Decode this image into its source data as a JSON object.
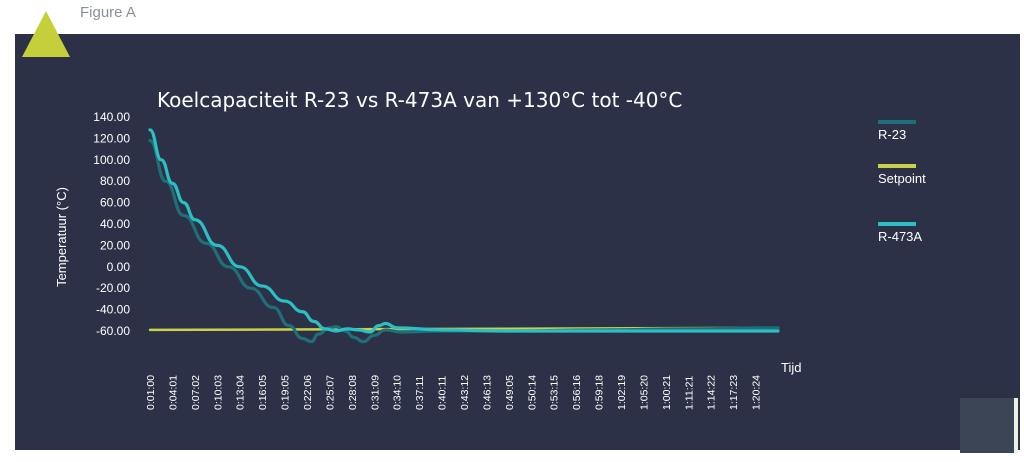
{
  "figure_label": "Figure A",
  "chart_data": {
    "type": "line",
    "title": "Koelcapaciteit R-23 vs R-473A van +130°C tot -40°C",
    "xlabel": "Tijd",
    "ylabel": "Temperatuur (°C)",
    "yticks": [
      "140.00",
      "120.00",
      "100.00",
      "80.00",
      "60.00",
      "40.00",
      "20.00",
      "0.00",
      "-20.00",
      "-40.00",
      "-60.00"
    ],
    "ylim": [
      -60,
      140
    ],
    "x_tick_labels": [
      "0:01:00",
      "0:04:01",
      "0:07:02",
      "0:10:03",
      "0:13:04",
      "0:16:05",
      "0:19:05",
      "0:22:06",
      "0:25:07",
      "0:28:08",
      "0:31:09",
      "0:34:10",
      "0:37:11",
      "0:40:11",
      "0:43:12",
      "0:46:13",
      "0:49:05",
      "0:50:14",
      "0:53:15",
      "0:56:16",
      "0:59:18",
      "1:02:19",
      "1:05:20",
      "1:00:21",
      "1:11:21",
      "1:14:22",
      "1:17:23",
      "1:20:24"
    ],
    "legend_position": "right",
    "series": [
      {
        "name": "R-23",
        "color": "#1f6e78",
        "x_index": [
          0,
          0.7,
          1.5,
          2.5,
          3.5,
          4.5,
          5.5,
          6.2,
          6.8,
          7.2,
          7.5,
          8.0,
          8.3,
          8.7,
          9.1,
          9.5,
          10.0,
          10.5,
          11.2,
          13,
          16,
          20,
          24,
          28
        ],
        "values": [
          118,
          80,
          48,
          22,
          0,
          -20,
          -38,
          -55,
          -67,
          -70,
          -63,
          -57,
          -56,
          -60,
          -66,
          -70,
          -64,
          -59,
          -61,
          -60,
          -60,
          -59,
          -58,
          -57
        ]
      },
      {
        "name": "Setpoint",
        "color": "#c8d14a",
        "x_index": [
          0,
          28
        ],
        "values": [
          -59,
          -57
        ]
      },
      {
        "name": "R-473A",
        "color": "#2bbfc3",
        "x_index": [
          0,
          0.5,
          1.0,
          1.5,
          2.0,
          3.0,
          4.0,
          5.0,
          6.0,
          6.8,
          7.3,
          7.8,
          8.3,
          8.8,
          9.3,
          9.8,
          10.2,
          10.5,
          11,
          13,
          16,
          20,
          24,
          28
        ],
        "values": [
          128,
          100,
          78,
          60,
          44,
          20,
          0,
          -18,
          -32,
          -42,
          -51,
          -58,
          -60,
          -58,
          -59,
          -61,
          -55,
          -53,
          -57,
          -59,
          -60,
          -60,
          -60,
          -60
        ]
      }
    ]
  }
}
